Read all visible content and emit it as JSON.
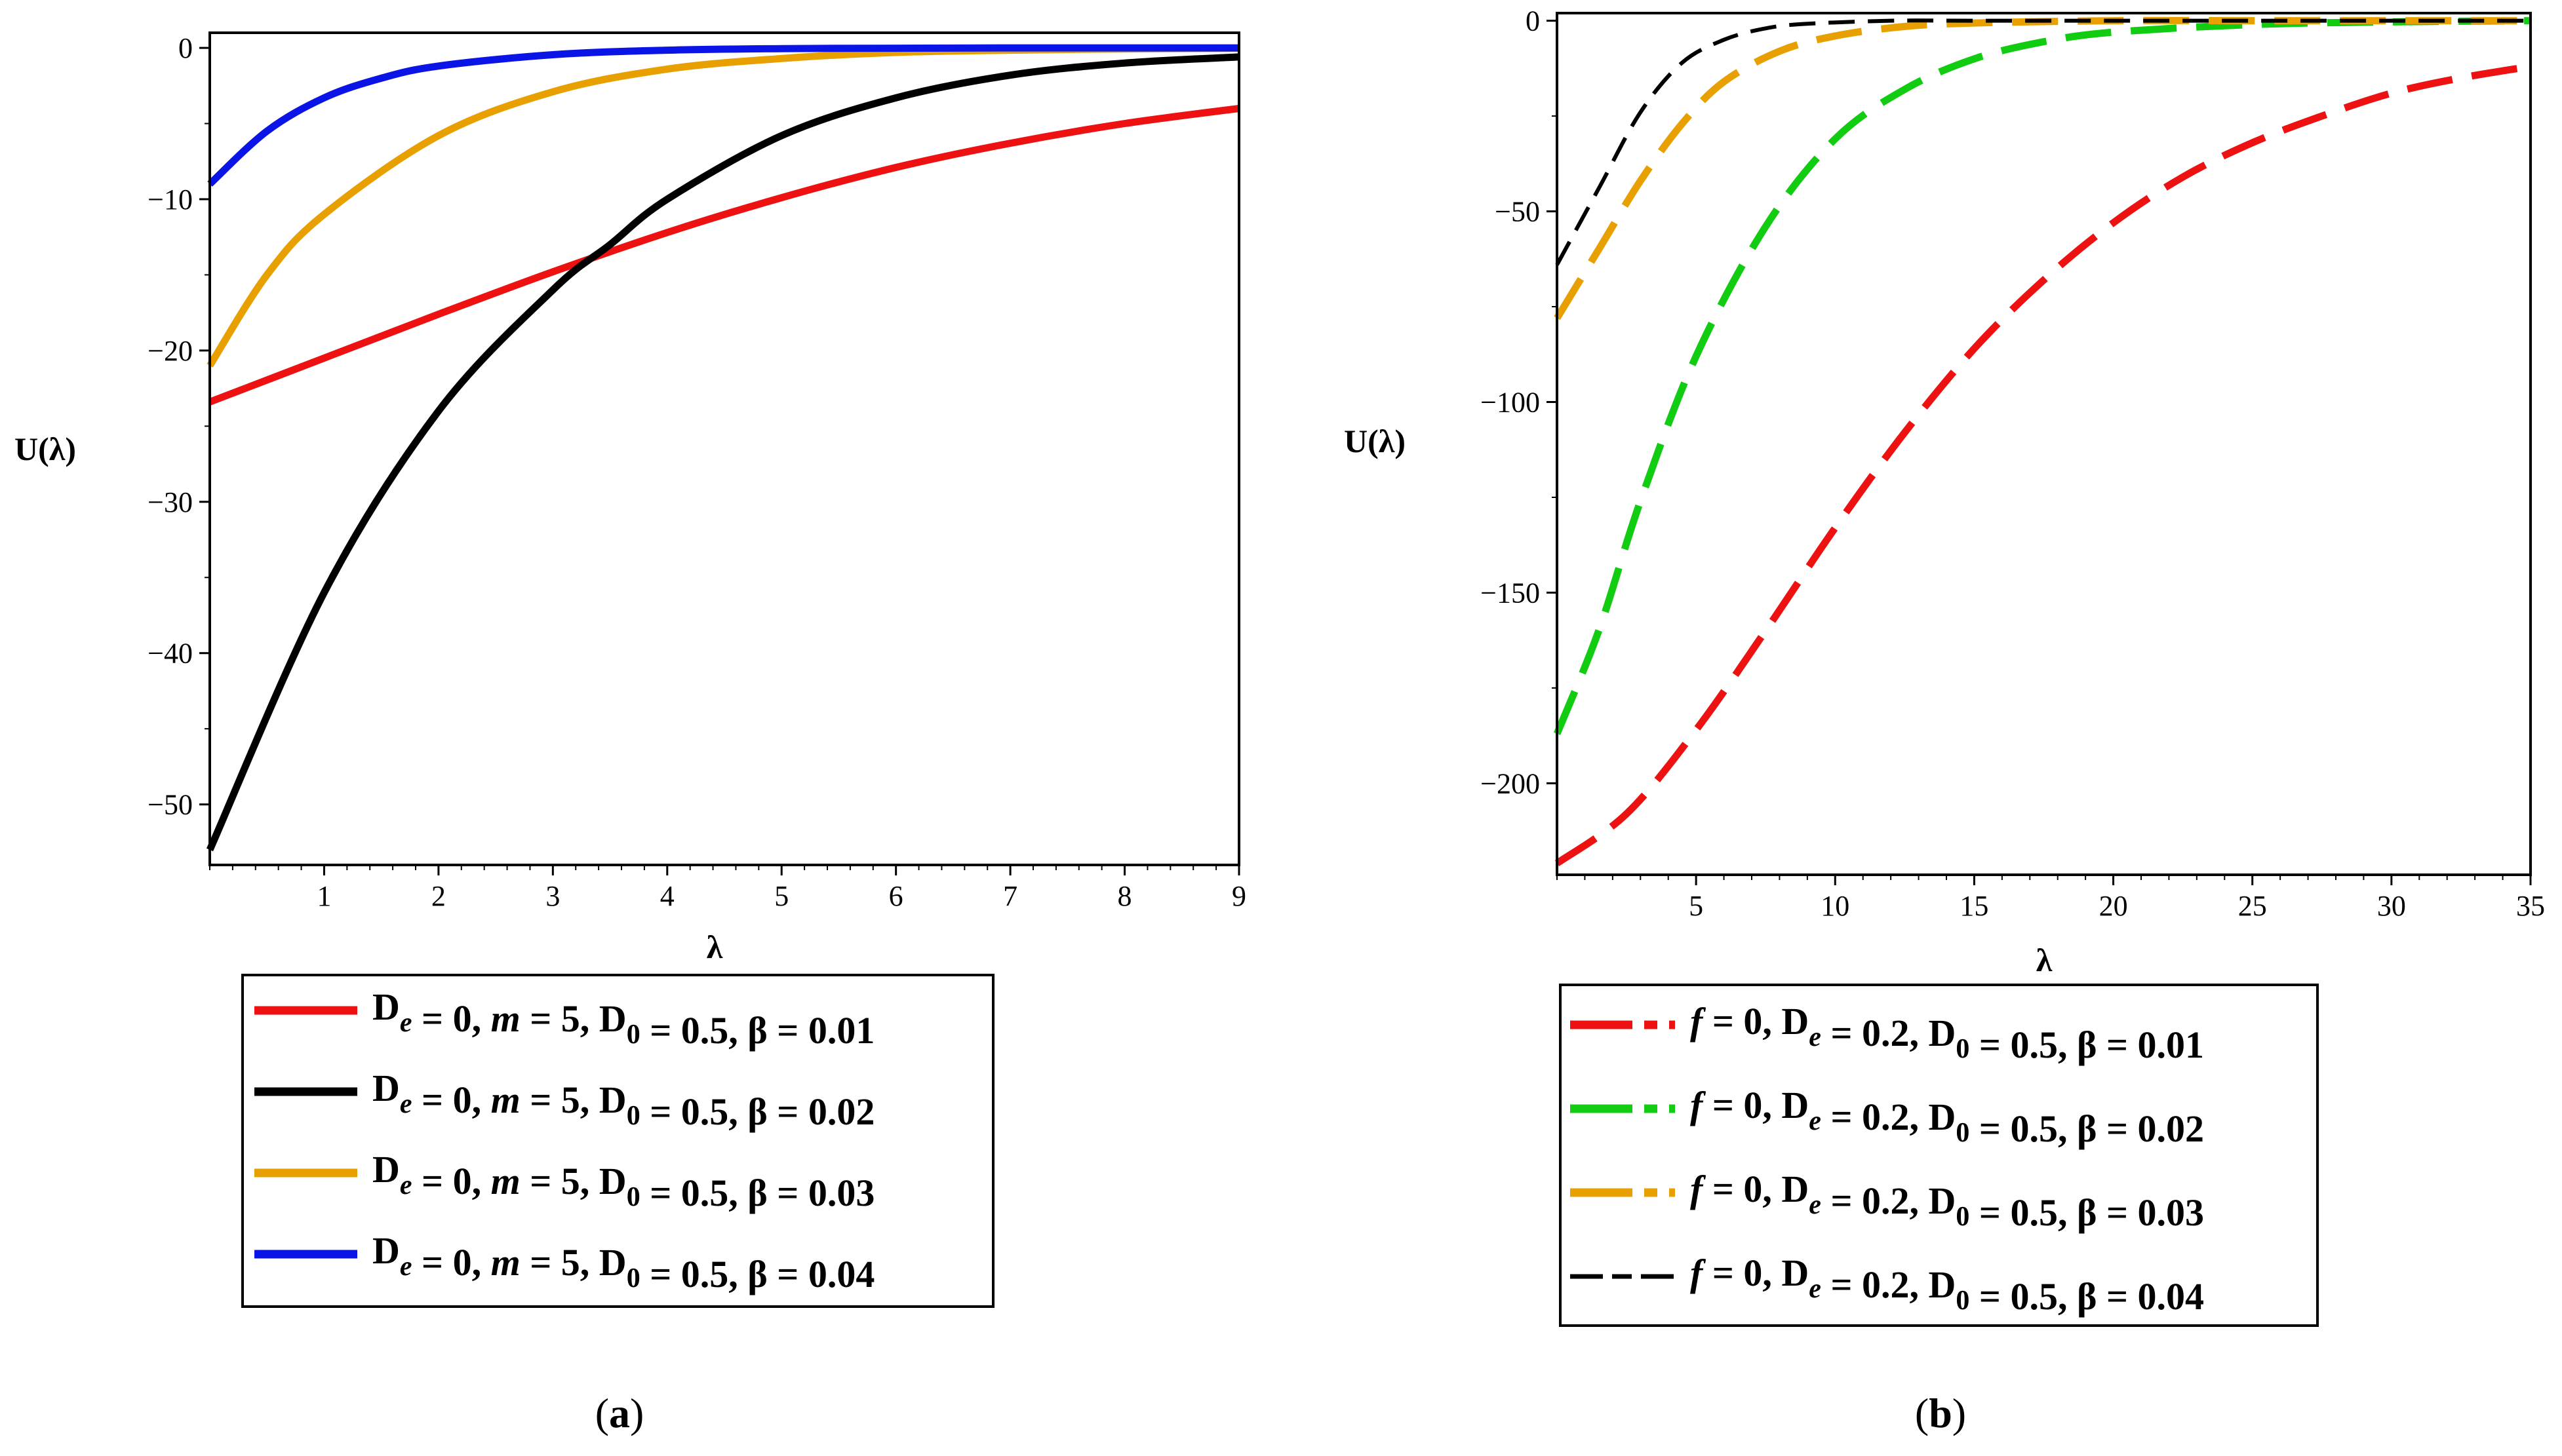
{
  "chart_data": [
    {
      "type": "line",
      "panel": "a",
      "caption": "a",
      "xlabel": "λ",
      "ylabel": "U(λ)",
      "xlim": [
        0,
        9
      ],
      "ylim": [
        -54,
        1
      ],
      "xticks": [
        1,
        2,
        3,
        4,
        5,
        6,
        7,
        8,
        9
      ],
      "yticks": [
        0,
        -10,
        -20,
        -30,
        -40,
        -50
      ],
      "legend_position": "bottom",
      "series": [
        {
          "name": "D_e = 0, m = 5, D_0 = 0.5, β = 0.01",
          "beta": "0.01",
          "color": "#ee1111",
          "dash": "solid",
          "x": [
            0,
            1,
            2,
            3,
            4,
            5,
            6,
            7,
            8,
            9
          ],
          "y": [
            -23.4,
            -20.5,
            -17.6,
            -14.8,
            -12.2,
            -9.9,
            -7.9,
            -6.3,
            -5.0,
            -4.0
          ]
        },
        {
          "name": "D_e = 0, m = 5, D_0 = 0.5, β = 0.02",
          "beta": "0.02",
          "color": "#000000",
          "dash": "solid",
          "x": [
            0,
            1,
            2,
            3,
            3.5,
            4,
            5,
            6,
            7,
            8,
            9
          ],
          "y": [
            -53.0,
            -36.0,
            -24.0,
            -16.0,
            -13.0,
            -10.0,
            -5.8,
            -3.3,
            -1.8,
            -1.0,
            -0.6
          ]
        },
        {
          "name": "D_e = 0, m = 5, D_0 = 0.5, β = 0.03",
          "beta": "0.03",
          "color": "#e8a000",
          "dash": "solid",
          "x": [
            0,
            0.5,
            1,
            2,
            3,
            4,
            5,
            6,
            7,
            8,
            9
          ],
          "y": [
            -21.0,
            -15.0,
            -11.0,
            -5.8,
            -2.9,
            -1.4,
            -0.7,
            -0.3,
            -0.15,
            -0.07,
            -0.03
          ]
        },
        {
          "name": "D_e = 0, m = 5, D_0 = 0.5, β = 0.04",
          "beta": "0.04",
          "color": "#0a14e6",
          "dash": "solid",
          "x": [
            0,
            0.5,
            1,
            1.5,
            2,
            3,
            4,
            5,
            6,
            7,
            8,
            9
          ],
          "y": [
            -9.0,
            -5.5,
            -3.3,
            -2.0,
            -1.2,
            -0.45,
            -0.15,
            -0.05,
            -0.02,
            0,
            0,
            0
          ]
        }
      ]
    },
    {
      "type": "line",
      "panel": "b",
      "caption": "b",
      "xlabel": "λ",
      "ylabel": "U(λ)",
      "xlim": [
        0,
        35
      ],
      "ylim": [
        -224,
        2
      ],
      "xticks": [
        5,
        10,
        15,
        20,
        25,
        30,
        35
      ],
      "yticks": [
        0,
        -50,
        -100,
        -150,
        -200
      ],
      "legend_position": "bottom",
      "series": [
        {
          "name": "f = 0, D_e = 0.2, D_0 = 0.5, β = 0.01",
          "beta": "0.01",
          "color": "#ee1111",
          "dash": "long-dash",
          "x": [
            0,
            2.5,
            5,
            7.5,
            10,
            12.5,
            15,
            17.5,
            20,
            22.5,
            25,
            27.5,
            30,
            32.5,
            35
          ],
          "y": [
            -221,
            -208,
            -186,
            -160,
            -133,
            -108,
            -86,
            -68,
            -53,
            -41,
            -32,
            -25,
            -19,
            -15,
            -12
          ]
        },
        {
          "name": "f = 0, D_e = 0.2, D_0 = 0.5, β = 0.02",
          "beta": "0.02",
          "color": "#11cc11",
          "dash": "long-dash",
          "x": [
            0,
            1.5,
            3,
            5,
            7.5,
            10,
            12.5,
            15,
            17.5,
            20,
            25,
            30,
            35
          ],
          "y": [
            -187,
            -160,
            -126,
            -88,
            -54,
            -31,
            -18,
            -10,
            -5.5,
            -3,
            -1,
            -0.3,
            0
          ]
        },
        {
          "name": "f = 0, D_e = 0.2, D_0 = 0.5, β = 0.03",
          "beta": "0.03",
          "color": "#e8a000",
          "dash": "long-dash",
          "x": [
            0,
            1.5,
            3,
            4.5,
            6,
            8,
            10,
            12.5,
            15,
            20,
            25,
            30,
            35
          ],
          "y": [
            -78,
            -60,
            -42,
            -27,
            -16,
            -8,
            -4,
            -1.5,
            -0.6,
            0,
            0,
            0,
            0
          ]
        },
        {
          "name": "f = 0, D_e = 0.2, D_0 = 0.5, β = 0.04",
          "beta": "0.04",
          "color": "#000000",
          "dash": "dash",
          "x": [
            0,
            1.5,
            3,
            4.5,
            6,
            7.5,
            9,
            12,
            15,
            20,
            25,
            30,
            35
          ],
          "y": [
            -64,
            -44,
            -24,
            -11,
            -5,
            -2,
            -0.8,
            0,
            0,
            0,
            0,
            0,
            0
          ]
        }
      ]
    }
  ]
}
